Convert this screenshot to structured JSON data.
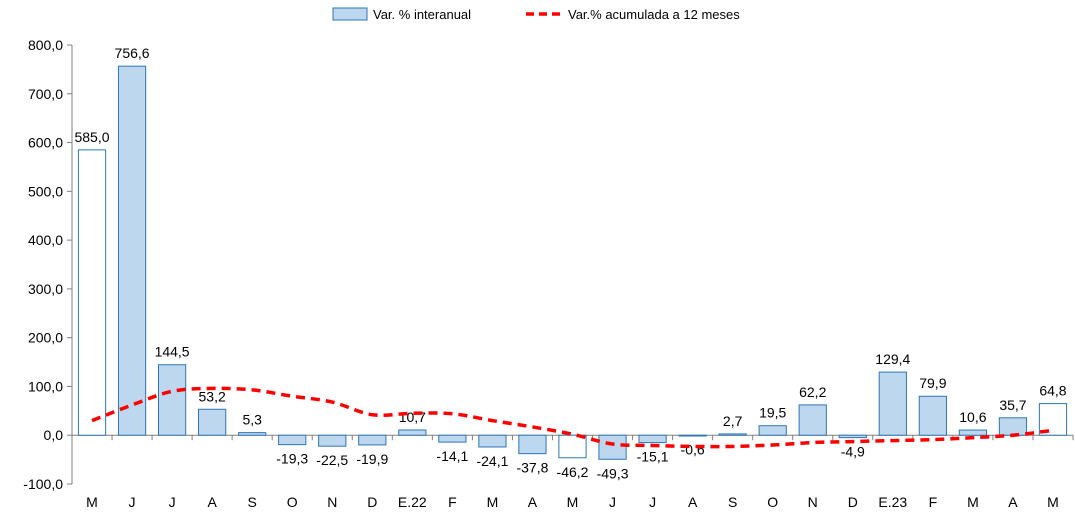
{
  "chart_data": {
    "type": "bar",
    "categories": [
      "M",
      "J",
      "J",
      "A",
      "S",
      "O",
      "N",
      "D",
      "E.22",
      "F",
      "M",
      "A",
      "M",
      "J",
      "J",
      "A",
      "S",
      "O",
      "N",
      "D",
      "E.23",
      "F",
      "M",
      "A",
      "M"
    ],
    "series": [
      {
        "name": "Var. % interanual",
        "type": "bar",
        "values": [
          585.0,
          756.6,
          144.5,
          53.2,
          5.3,
          -19.3,
          -22.5,
          -19.9,
          10.7,
          -14.1,
          -24.1,
          -37.8,
          -46.2,
          -49.3,
          -15.1,
          -0.6,
          2.7,
          19.5,
          62.2,
          -4.9,
          129.4,
          79.9,
          10.6,
          35.7,
          64.8
        ],
        "labels": [
          "585,0",
          "756,6",
          "144,5",
          "53,2",
          "5,3",
          "-19,3",
          "-22,5",
          "-19,9",
          "10,7",
          "-14,1",
          "-24,1",
          "-37,8",
          "-46,2",
          "-49,3",
          "-15,1",
          "-0,6",
          "2,7",
          "19,5",
          "62,2",
          "-4,9",
          "129,4",
          "79,9",
          "10,6",
          "35,7",
          "64,8"
        ],
        "highlight": [
          true,
          false,
          false,
          false,
          false,
          false,
          false,
          false,
          false,
          false,
          false,
          false,
          true,
          false,
          false,
          false,
          false,
          false,
          false,
          false,
          false,
          false,
          false,
          false,
          true
        ],
        "color": "#bdd7ee",
        "border_color": "#2e75b6"
      },
      {
        "name": "Var.% acumulada a 12 meses",
        "type": "line",
        "style": "dashed",
        "values": [
          30,
          62,
          90,
          96,
          93,
          80,
          68,
          42,
          45,
          44,
          30,
          17,
          2,
          -18,
          -21,
          -23,
          -23,
          -20,
          -15,
          -13,
          -11,
          -9,
          -5,
          0,
          10
        ],
        "color": "#ff0000"
      }
    ],
    "ylim": [
      -100,
      800
    ],
    "yticks": [
      "-100,0",
      "0,0",
      "100,0",
      "200,0",
      "300,0",
      "400,0",
      "500,0",
      "600,0",
      "700,0",
      "800,0"
    ],
    "legend_position": "top-center",
    "grid": false,
    "title": "",
    "xlabel": "",
    "ylabel": ""
  }
}
